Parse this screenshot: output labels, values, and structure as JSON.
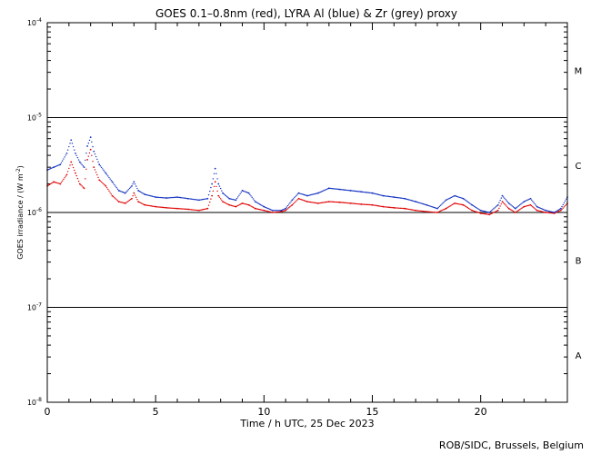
{
  "chart_data": {
    "type": "scatter",
    "title": "GOES 0.1–0.8nm (red), LYRA Al (blue) & Zr (grey) proxy",
    "xlabel": "Time / h UTC, 25 Dec 2023",
    "ylabel_text": "GOES irradiance / (W m",
    "ylabel_sup": "-2",
    "ylabel_end": ")",
    "credit": "ROB/SIDC, Brussels, Belgium",
    "xlim": [
      0,
      24
    ],
    "ylim": [
      1e-08,
      0.0001
    ],
    "yscale": "log",
    "x_ticks": [
      {
        "v": 0,
        "label": "0"
      },
      {
        "v": 5,
        "label": "5"
      },
      {
        "v": 10,
        "label": "10"
      },
      {
        "v": 15,
        "label": "15"
      },
      {
        "v": 20,
        "label": "20"
      }
    ],
    "y_ticks": [
      {
        "exp": -8,
        "base": "10",
        "sup": "-8"
      },
      {
        "exp": -7,
        "base": "10",
        "sup": "-7"
      },
      {
        "exp": -6,
        "base": "10",
        "sup": "-6"
      },
      {
        "exp": -5,
        "base": "10",
        "sup": "-5"
      },
      {
        "exp": -4,
        "base": "10",
        "sup": "-4"
      }
    ],
    "class_lines": [
      1e-07,
      1e-06,
      1e-05
    ],
    "flare_classes": [
      {
        "label": "A",
        "value": 3.16e-08
      },
      {
        "label": "B",
        "value": 3.16e-07
      },
      {
        "label": "C",
        "value": 3.16e-06
      },
      {
        "label": "M",
        "value": 3.16e-05
      }
    ],
    "series": [
      {
        "color": "#e00000",
        "x": [
          0.0,
          0.3,
          0.6,
          0.9,
          1.1,
          1.3,
          1.5,
          1.7,
          1.85,
          2.0,
          2.15,
          2.4,
          2.7,
          3.0,
          3.3,
          3.6,
          3.9,
          4.0,
          4.2,
          4.5,
          5.0,
          5.5,
          6.0,
          6.5,
          7.0,
          7.4,
          7.6,
          7.75,
          7.9,
          8.1,
          8.4,
          8.7,
          9.0,
          9.3,
          9.6,
          10.0,
          10.4,
          10.8,
          11.0,
          11.3,
          11.6,
          12.0,
          12.5,
          13.0,
          13.5,
          14.0,
          14.5,
          15.0,
          15.5,
          16.0,
          16.5,
          17.0,
          17.5,
          18.0,
          18.4,
          18.8,
          19.2,
          19.6,
          20.0,
          20.4,
          20.8,
          21.0,
          21.3,
          21.6,
          22.0,
          22.3,
          22.6,
          23.0,
          23.4,
          23.7,
          24.0
        ],
        "y": [
          1.9e-06,
          2.1e-06,
          2e-06,
          2.5e-06,
          3.4e-06,
          2.6e-06,
          2e-06,
          1.8e-06,
          3.6e-06,
          4.6e-06,
          3e-06,
          2.2e-06,
          1.9e-06,
          1.5e-06,
          1.3e-06,
          1.25e-06,
          1.4e-06,
          1.6e-06,
          1.3e-06,
          1.2e-06,
          1.15e-06,
          1.12e-06,
          1.1e-06,
          1.08e-06,
          1.05e-06,
          1.1e-06,
          1.5e-06,
          2.1e-06,
          1.5e-06,
          1.3e-06,
          1.2e-06,
          1.15e-06,
          1.25e-06,
          1.2e-06,
          1.1e-06,
          1.05e-06,
          1e-06,
          1.02e-06,
          1.05e-06,
          1.2e-06,
          1.4e-06,
          1.3e-06,
          1.25e-06,
          1.3e-06,
          1.28e-06,
          1.25e-06,
          1.22e-06,
          1.2e-06,
          1.15e-06,
          1.12e-06,
          1.1e-06,
          1.05e-06,
          1.02e-06,
          1e-06,
          1.1e-06,
          1.25e-06,
          1.2e-06,
          1.05e-06,
          9.8e-07,
          9.5e-07,
          1.05e-06,
          1.3e-06,
          1.1e-06,
          1e-06,
          1.15e-06,
          1.2e-06,
          1.05e-06,
          1e-06,
          9.8e-07,
          1.05e-06,
          1.25e-06
        ]
      },
      {
        "color": "#1030c0",
        "x": [
          0.0,
          0.3,
          0.6,
          0.9,
          1.1,
          1.3,
          1.5,
          1.7,
          1.85,
          2.0,
          2.15,
          2.4,
          2.7,
          3.0,
          3.3,
          3.6,
          3.9,
          4.0,
          4.2,
          4.5,
          5.0,
          5.5,
          6.0,
          6.5,
          7.0,
          7.4,
          7.6,
          7.75,
          7.9,
          8.1,
          8.4,
          8.7,
          9.0,
          9.3,
          9.6,
          10.0,
          10.4,
          10.8,
          11.0,
          11.3,
          11.6,
          12.0,
          12.5,
          13.0,
          13.5,
          14.0,
          14.5,
          15.0,
          15.5,
          16.0,
          16.5,
          17.0,
          17.5,
          18.0,
          18.4,
          18.8,
          19.2,
          19.6,
          20.0,
          20.4,
          20.8,
          21.0,
          21.3,
          21.6,
          22.0,
          22.3,
          22.6,
          23.0,
          23.4,
          23.7,
          24.0
        ],
        "y": [
          2.8e-06,
          3e-06,
          3.2e-06,
          4.2e-06,
          5.8e-06,
          4.2e-06,
          3.4e-06,
          3e-06,
          5e-06,
          6.2e-06,
          4.4e-06,
          3.2e-06,
          2.6e-06,
          2.1e-06,
          1.7e-06,
          1.6e-06,
          1.9e-06,
          2.1e-06,
          1.7e-06,
          1.55e-06,
          1.45e-06,
          1.42e-06,
          1.45e-06,
          1.4e-06,
          1.35e-06,
          1.4e-06,
          2e-06,
          2.9e-06,
          2e-06,
          1.6e-06,
          1.4e-06,
          1.35e-06,
          1.7e-06,
          1.6e-06,
          1.3e-06,
          1.15e-06,
          1.05e-06,
          1.05e-06,
          1.1e-06,
          1.35e-06,
          1.6e-06,
          1.5e-06,
          1.6e-06,
          1.8e-06,
          1.75e-06,
          1.7e-06,
          1.65e-06,
          1.6e-06,
          1.5e-06,
          1.45e-06,
          1.4e-06,
          1.3e-06,
          1.2e-06,
          1.1e-06,
          1.35e-06,
          1.5e-06,
          1.4e-06,
          1.2e-06,
          1.05e-06,
          1e-06,
          1.2e-06,
          1.5e-06,
          1.25e-06,
          1.1e-06,
          1.3e-06,
          1.4e-06,
          1.15e-06,
          1.05e-06,
          1e-06,
          1.1e-06,
          1.45e-06
        ]
      }
    ]
  }
}
